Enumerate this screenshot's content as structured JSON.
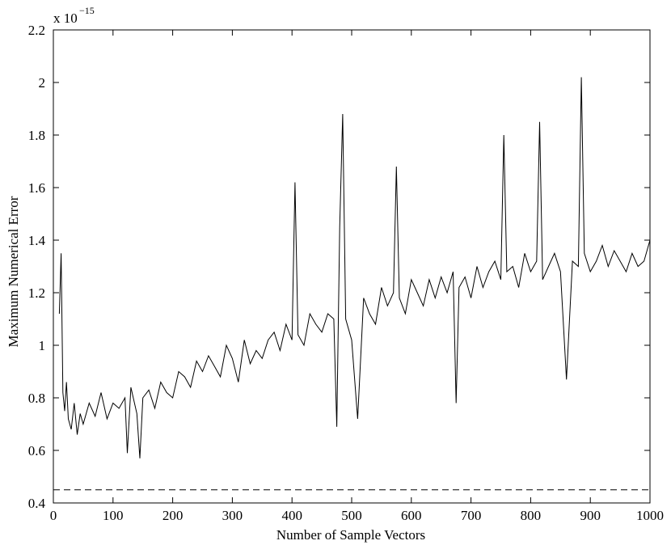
{
  "chart_data": {
    "type": "line",
    "title": "",
    "xlabel": "Number of Sample Vectors",
    "ylabel": "Maximum Numerical Error",
    "y_multiplier_label": "x 10",
    "y_multiplier_exponent": "−15",
    "xlim": [
      0,
      1000
    ],
    "ylim": [
      0.4,
      2.2
    ],
    "x_ticks": [
      0,
      100,
      200,
      300,
      400,
      500,
      600,
      700,
      800,
      900,
      1000
    ],
    "x_tick_labels": [
      "0",
      "100",
      "200",
      "300",
      "400",
      "500",
      "600",
      "700",
      "800",
      "900",
      "1000"
    ],
    "y_ticks": [
      0.4,
      0.6,
      0.8,
      1.0,
      1.2,
      1.4,
      1.6,
      1.8,
      2.0,
      2.2
    ],
    "y_tick_labels": [
      "0.4",
      "0.6",
      "0.8",
      "1",
      "1.2",
      "1.4",
      "1.6",
      "1.8",
      "2",
      "2.2"
    ],
    "grid": false,
    "series": [
      {
        "style": "solid",
        "color": "#000000",
        "x": [
          10,
          13,
          16,
          19,
          22,
          25,
          30,
          35,
          40,
          45,
          50,
          60,
          70,
          80,
          90,
          100,
          110,
          120,
          124,
          130,
          140,
          145,
          150,
          160,
          170,
          180,
          190,
          200,
          210,
          220,
          230,
          240,
          250,
          260,
          270,
          280,
          290,
          300,
          310,
          320,
          330,
          340,
          350,
          360,
          370,
          380,
          390,
          400,
          405,
          410,
          420,
          430,
          440,
          450,
          460,
          470,
          475,
          480,
          485,
          490,
          500,
          510,
          520,
          530,
          540,
          550,
          560,
          570,
          575,
          580,
          590,
          600,
          610,
          620,
          630,
          640,
          650,
          660,
          670,
          675,
          680,
          690,
          700,
          710,
          720,
          730,
          740,
          750,
          755,
          760,
          770,
          780,
          790,
          800,
          810,
          815,
          820,
          830,
          840,
          850,
          860,
          870,
          880,
          885,
          890,
          900,
          910,
          920,
          930,
          940,
          950,
          960,
          970,
          980,
          990,
          1000
        ],
        "y": [
          1.12,
          1.35,
          0.82,
          0.75,
          0.86,
          0.72,
          0.68,
          0.78,
          0.66,
          0.74,
          0.7,
          0.78,
          0.73,
          0.82,
          0.72,
          0.78,
          0.76,
          0.8,
          0.59,
          0.84,
          0.74,
          0.57,
          0.8,
          0.83,
          0.76,
          0.86,
          0.82,
          0.8,
          0.9,
          0.88,
          0.84,
          0.94,
          0.9,
          0.96,
          0.92,
          0.88,
          1.0,
          0.95,
          0.86,
          1.02,
          0.93,
          0.98,
          0.95,
          1.02,
          1.05,
          0.98,
          1.08,
          1.02,
          1.62,
          1.04,
          1.0,
          1.12,
          1.08,
          1.05,
          1.12,
          1.1,
          0.69,
          1.45,
          1.88,
          1.1,
          1.02,
          0.72,
          1.18,
          1.12,
          1.08,
          1.22,
          1.15,
          1.2,
          1.68,
          1.18,
          1.12,
          1.25,
          1.2,
          1.15,
          1.25,
          1.18,
          1.26,
          1.2,
          1.28,
          0.78,
          1.22,
          1.26,
          1.18,
          1.3,
          1.22,
          1.28,
          1.32,
          1.25,
          1.8,
          1.28,
          1.3,
          1.22,
          1.35,
          1.28,
          1.32,
          1.85,
          1.25,
          1.3,
          1.35,
          1.28,
          0.87,
          1.32,
          1.3,
          2.02,
          1.35,
          1.28,
          1.32,
          1.38,
          1.3,
          1.36,
          1.32,
          1.28,
          1.35,
          1.3,
          1.32,
          1.4
        ]
      },
      {
        "style": "dashed",
        "color": "#000000",
        "x": [
          0,
          1000
        ],
        "y": [
          0.45,
          0.45
        ]
      }
    ]
  }
}
